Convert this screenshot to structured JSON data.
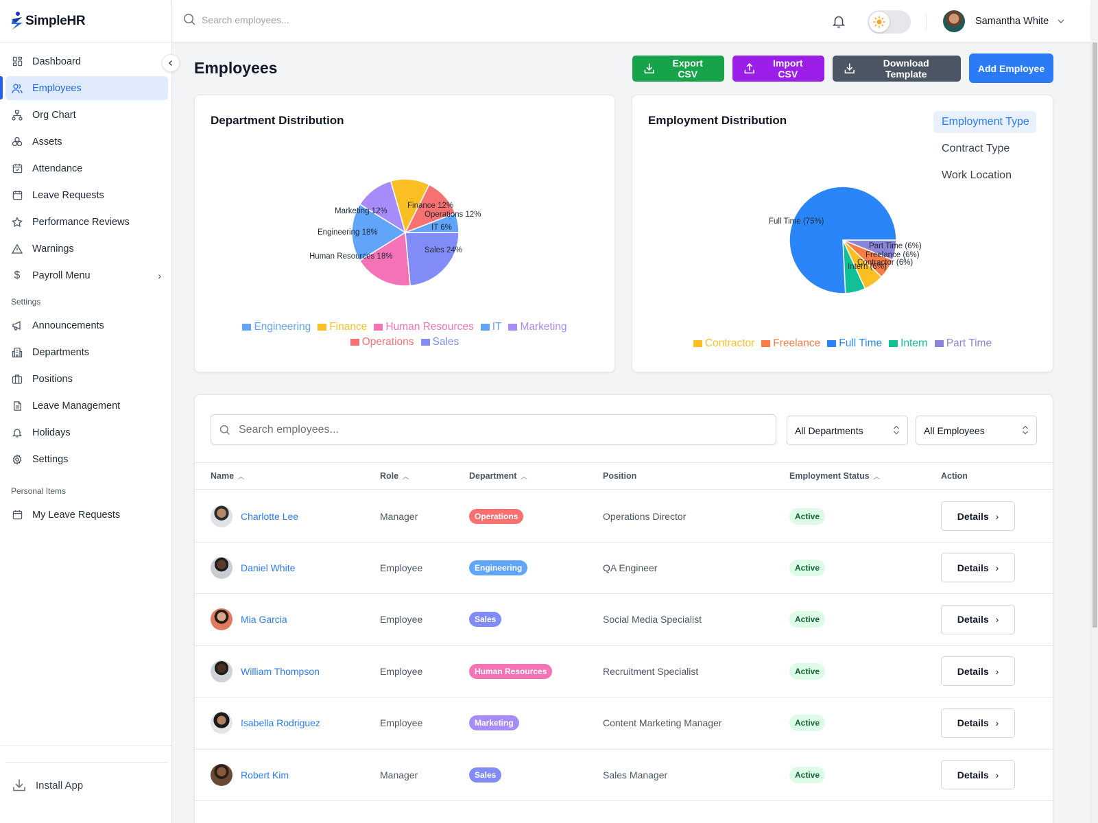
{
  "app": {
    "name": "SimpleHR"
  },
  "sidebar": {
    "main_items": [
      {
        "label": "Dashboard",
        "icon": "dashboard-icon"
      },
      {
        "label": "Employees",
        "icon": "users-icon",
        "active": true
      },
      {
        "label": "Org Chart",
        "icon": "org-chart-icon"
      },
      {
        "label": "Assets",
        "icon": "assets-icon"
      },
      {
        "label": "Attendance",
        "icon": "calendar-check-icon"
      },
      {
        "label": "Leave Requests",
        "icon": "calendar-icon"
      },
      {
        "label": "Performance Reviews",
        "icon": "star-icon"
      },
      {
        "label": "Warnings",
        "icon": "warning-icon"
      },
      {
        "label": "Payroll Menu",
        "icon": "dollar-icon",
        "has_submenu": true
      }
    ],
    "settings_label": "Settings",
    "settings_items": [
      {
        "label": "Announcements",
        "icon": "megaphone-icon"
      },
      {
        "label": "Departments",
        "icon": "building-icon"
      },
      {
        "label": "Positions",
        "icon": "briefcase-icon"
      },
      {
        "label": "Leave Management",
        "icon": "document-icon"
      },
      {
        "label": "Holidays",
        "icon": "bell-icon"
      },
      {
        "label": "Settings",
        "icon": "gear-icon"
      }
    ],
    "personal_label": "Personal Items",
    "personal_items": [
      {
        "label": "My Leave Requests",
        "icon": "calendar-icon"
      }
    ],
    "install_label": "Install App"
  },
  "topbar": {
    "search_placeholder": "Search employees...",
    "user_name": "Samantha White",
    "theme": "light"
  },
  "page": {
    "title": "Employees",
    "actions": {
      "export": "Export CSV",
      "import": "Import CSV",
      "template": "Download Template",
      "add": "Add Employee"
    }
  },
  "colors": {
    "primary": "#2a7bf5",
    "export": "#16a34a",
    "import": "#9b1fe8",
    "template": "#4b5563",
    "active_status_bg": "#dcfce7",
    "active_status_fg": "#166534"
  },
  "chart_data": [
    {
      "type": "pie",
      "title": "Department Distribution",
      "categories": [
        "IT",
        "Operations",
        "Finance",
        "Marketing",
        "Engineering",
        "Human Resources",
        "Sales"
      ],
      "values": [
        6,
        12,
        12,
        12,
        18,
        18,
        24
      ],
      "colors": [
        "#60a5fa",
        "#f87171",
        "#fbbf24",
        "#a78bfa",
        "#60a5fa",
        "#f472b6",
        "#818cf8"
      ],
      "labels": [
        "IT 6%",
        "Operations 12%",
        "Finance 12%",
        "Marketing 12%",
        "Engineering 18%",
        "Human Resources 18%",
        "Sales 24%"
      ],
      "legend": [
        {
          "label": "Engineering",
          "color": "#60a5fa"
        },
        {
          "label": "Finance",
          "color": "#fbbf24"
        },
        {
          "label": "Human Resources",
          "color": "#f472b6"
        },
        {
          "label": "IT",
          "color": "#60a5fa"
        },
        {
          "label": "Marketing",
          "color": "#a78bfa"
        },
        {
          "label": "Operations",
          "color": "#f87171"
        },
        {
          "label": "Sales",
          "color": "#818cf8"
        }
      ],
      "legend_position": "bottom"
    },
    {
      "type": "pie",
      "title": "Employment Distribution",
      "categories": [
        "Part Time",
        "Freelance",
        "Contractor",
        "Intern",
        "Full Time"
      ],
      "values": [
        6,
        6,
        6,
        6,
        75
      ],
      "colors": [
        "#8b84d7",
        "#fb7c45",
        "#fbbf24",
        "#10c197",
        "#2a86f8"
      ],
      "labels": [
        "Part Time (6%)",
        "Freelance (6%)",
        "Contractor (6%)",
        "Intern (6%)",
        "Full Time (75%)"
      ],
      "legend": [
        {
          "label": "Contractor",
          "color": "#fbbf24"
        },
        {
          "label": "Freelance",
          "color": "#fb7c45"
        },
        {
          "label": "Full Time",
          "color": "#2a86f8"
        },
        {
          "label": "Intern",
          "color": "#10c197"
        },
        {
          "label": "Part Time",
          "color": "#8b84d7"
        }
      ],
      "legend_position": "bottom",
      "tabs": [
        "Employment Type",
        "Contract Type",
        "Work Location"
      ],
      "active_tab": "Employment Type"
    }
  ],
  "table": {
    "search_placeholder": "Search employees...",
    "department_filter": "All Departments",
    "employee_filter": "All Employees",
    "columns": [
      "Name",
      "Role",
      "Department",
      "Position",
      "Employment Status",
      "Action"
    ],
    "rows": [
      {
        "name": "Charlotte Lee",
        "role": "Manager",
        "department": "Operations",
        "dept_color": "#f87171",
        "position": "Operations Director",
        "status": "Active",
        "action": "Details"
      },
      {
        "name": "Daniel White",
        "role": "Employee",
        "department": "Engineering",
        "dept_color": "#60a5fa",
        "position": "QA Engineer",
        "status": "Active",
        "action": "Details"
      },
      {
        "name": "Mia Garcia",
        "role": "Employee",
        "department": "Sales",
        "dept_color": "#818cf8",
        "position": "Social Media Specialist",
        "status": "Active",
        "action": "Details"
      },
      {
        "name": "William Thompson",
        "role": "Employee",
        "department": "Human Resources",
        "dept_color": "#f472b6",
        "position": "Recruitment Specialist",
        "status": "Active",
        "action": "Details"
      },
      {
        "name": "Isabella Rodriguez",
        "role": "Employee",
        "department": "Marketing",
        "dept_color": "#a78bfa",
        "position": "Content Marketing Manager",
        "status": "Active",
        "action": "Details"
      },
      {
        "name": "Robert Kim",
        "role": "Manager",
        "department": "Sales",
        "dept_color": "#818cf8",
        "position": "Sales Manager",
        "status": "Active",
        "action": "Details"
      }
    ]
  }
}
